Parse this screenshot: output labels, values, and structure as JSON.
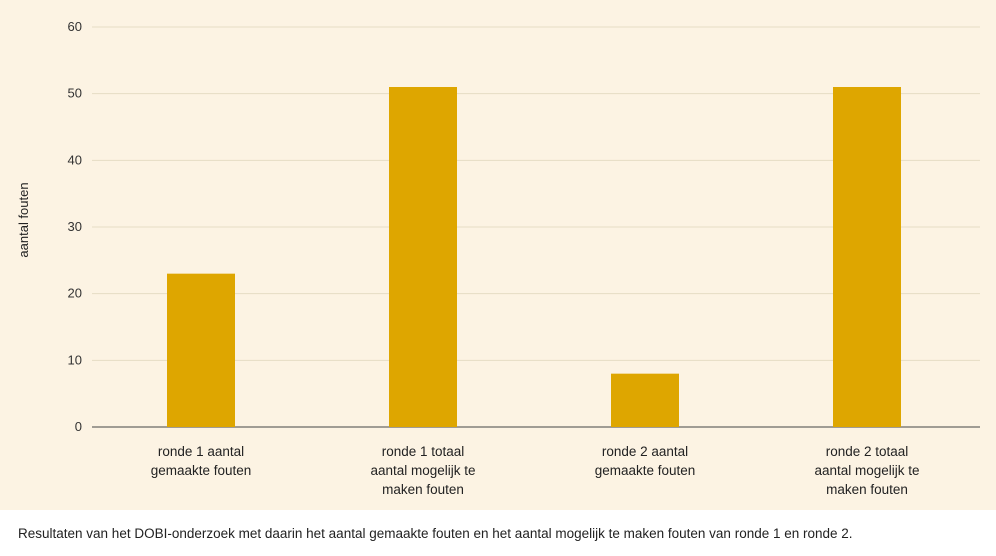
{
  "chart_data": {
    "type": "bar",
    "categories": [
      [
        "ronde 1 aantal",
        "gemaakte fouten"
      ],
      [
        "ronde 1 totaal",
        "aantal mogelijk te",
        "maken fouten"
      ],
      [
        "ronde 2 aantal",
        "gemaakte fouten"
      ],
      [
        "ronde 2 totaal",
        "aantal mogelijk te",
        "maken fouten"
      ]
    ],
    "values": [
      23,
      51,
      8,
      51
    ],
    "ylabel": "aantal fouten",
    "xlabel": "",
    "ylim": [
      0,
      60
    ],
    "yticks": [
      0,
      10,
      20,
      30,
      40,
      50,
      60
    ],
    "grid": true,
    "bar_color": "#dea600",
    "grid_color": "#e6dcc4",
    "background": "#fcf3e3"
  },
  "caption": "Resultaten van het DOBI-onderzoek met daarin het aantal gemaakte fouten en het aantal mogelijk te maken fouten van ronde 1 en ronde 2."
}
